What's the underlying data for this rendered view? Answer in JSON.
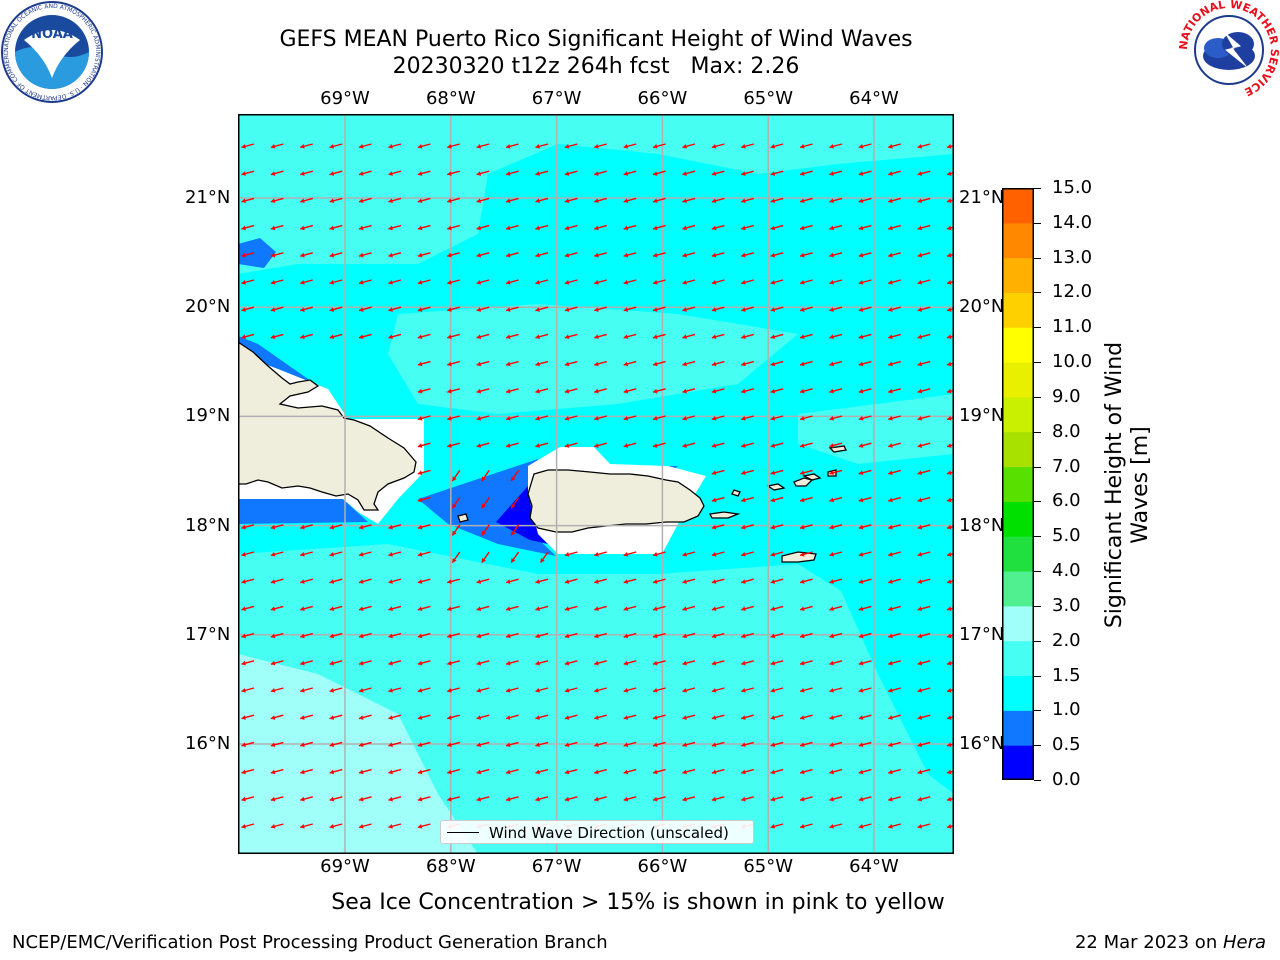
{
  "header": {
    "title_line1": "GEFS MEAN Puerto Rico Significant Height of Wind Waves",
    "title_line2": "20230320 t12z 264h fcst   Max: 2.26"
  },
  "logos": {
    "left": {
      "name": "noaa-logo",
      "text": "NOAA",
      "ring_text": "NATIONAL OCEANIC AND ATMOSPHERIC ADMINISTRATION · U.S. DEPARTMENT OF COMMERCE"
    },
    "right": {
      "name": "nws-logo",
      "ring_text": "NATIONAL WEATHER SERVICE"
    }
  },
  "map": {
    "lon_labels": [
      "69°W",
      "68°W",
      "67°W",
      "66°W",
      "65°W",
      "64°W"
    ],
    "lat_labels": [
      "21°N",
      "20°N",
      "19°N",
      "18°N",
      "17°N",
      "16°N"
    ],
    "lon_values": [
      -69,
      -68,
      -67,
      -66,
      -65,
      -64
    ],
    "lat_values": [
      21,
      20,
      19,
      18,
      17,
      16
    ],
    "legend_label": "Wind Wave Direction (unscaled)",
    "arrow_color": "#ff0000",
    "land_color": "#efeedd",
    "grid_color": "#b0b0b0"
  },
  "colorbar": {
    "title": "Significant Height of Wind Waves [m]",
    "ticks": [
      "15.0",
      "14.0",
      "13.0",
      "12.0",
      "11.0",
      "10.0",
      "9.0",
      "8.0",
      "7.0",
      "6.0",
      "5.0",
      "4.0",
      "3.0",
      "2.0",
      "1.5",
      "1.0",
      "0.5",
      "0.0"
    ],
    "colors": [
      "#0000ff",
      "#0f78ff",
      "#00ffff",
      "#46fff2",
      "#a0fff8",
      "#50f090",
      "#20e040",
      "#00e000",
      "#58e000",
      "#a8e000",
      "#c8f000",
      "#e8f000",
      "#ffff00",
      "#ffd000",
      "#ffb000",
      "#ff8800",
      "#ff6000",
      "#ff3000",
      "#ff0000"
    ]
  },
  "caption": "Sea Ice Concentration > 15% is shown in pink to yellow",
  "footer": {
    "left": "NCEP/EMC/Verification Post Processing Product Generation Branch",
    "right_prefix": "22 Mar 2023 on ",
    "right_host": "Hera"
  }
}
